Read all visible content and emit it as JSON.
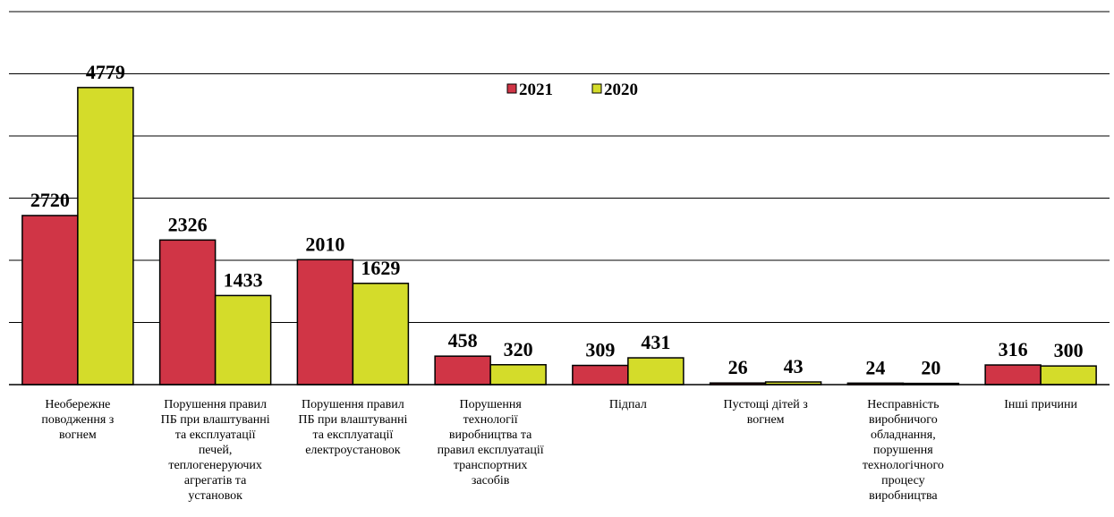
{
  "chart_data": {
    "type": "bar",
    "title": "",
    "xlabel": "",
    "ylabel": "",
    "ylim": [
      0,
      6000
    ],
    "grid": true,
    "legend_position": "top-center",
    "categories": [
      "Необережне поводження з вогнем",
      "Порушення правил ПБ при влаштуванні та експлуатації печей, теплогенеруючих агрегатів та установок",
      "Порушення правил ПБ при влаштуванні та експлуатації електроустановок",
      "Порушення технології виробництва та правил експлуатації транспортних засобів",
      "Підпал",
      "Пустощі дітей з вогнем",
      "Несправність виробничого обладнання, порушення технологічного процесу виробництва",
      "Інші причини"
    ],
    "category_lines": [
      [
        "Необережне",
        "поводження з",
        "вогнем"
      ],
      [
        "Порушення правил",
        "ПБ при влаштуванні",
        "та експлуатації",
        "печей,",
        "теплогенеруючих",
        "агрегатів та",
        "установок"
      ],
      [
        "Порушення правил",
        "ПБ при влаштуванні",
        "та експлуатації",
        "електроустановок"
      ],
      [
        "Порушення",
        "технології",
        "виробництва та",
        "правил експлуатації",
        "транспортних",
        "засобів"
      ],
      [
        "Підпал"
      ],
      [
        "Пустощі дітей з",
        "вогнем"
      ],
      [
        "Несправність",
        "виробничого",
        "обладнання,",
        "порушення",
        "технологічного",
        "процесу",
        "виробництва"
      ],
      [
        "Інші причини"
      ]
    ],
    "series": [
      {
        "name": "2021",
        "color": "#d03546",
        "values": [
          2720,
          2326,
          2010,
          458,
          309,
          26,
          24,
          316
        ]
      },
      {
        "name": "2020",
        "color": "#d4dc2a",
        "values": [
          4779,
          1433,
          1629,
          320,
          431,
          43,
          20,
          300
        ]
      }
    ],
    "value_labels": [
      [
        "2720",
        "2326",
        "2010",
        "458",
        "309",
        "26",
        "24",
        "316"
      ],
      [
        "4779",
        "1433",
        "1629",
        "320",
        "431",
        "43",
        "20",
        "300"
      ]
    ]
  }
}
